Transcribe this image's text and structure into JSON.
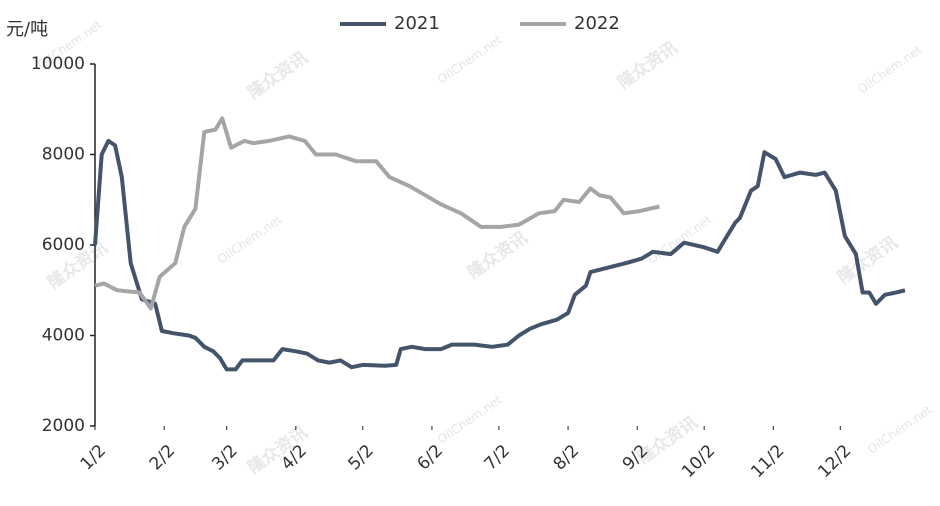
{
  "chart_data": {
    "type": "line",
    "y_label": "元/吨",
    "watermark": [
      "隆众资讯",
      "OilChem.net"
    ],
    "xlim": [
      0,
      363
    ],
    "xticks": [
      {
        "value": 0,
        "label": "1/2"
      },
      {
        "value": 31,
        "label": "2/2"
      },
      {
        "value": 59,
        "label": "3/2"
      },
      {
        "value": 90,
        "label": "4/2"
      },
      {
        "value": 120,
        "label": "5/2"
      },
      {
        "value": 151,
        "label": "6/2"
      },
      {
        "value": 181,
        "label": "7/2"
      },
      {
        "value": 212,
        "label": "8/2"
      },
      {
        "value": 243,
        "label": "9/2"
      },
      {
        "value": 273,
        "label": "10/2"
      },
      {
        "value": 304,
        "label": "11/2"
      },
      {
        "value": 334,
        "label": "12/2"
      }
    ],
    "ylim": [
      2000,
      10000
    ],
    "yticks": [
      2000,
      4000,
      6000,
      8000,
      10000
    ],
    "grid": false,
    "legend": "top",
    "series": [
      {
        "name": "2021",
        "color": "#44546a",
        "x": [
          0,
          3,
          6,
          9,
          12,
          16,
          21,
          27,
          30,
          35,
          42,
          45,
          49,
          53,
          56,
          59,
          63,
          66,
          73,
          80,
          84,
          90,
          95,
          100,
          105,
          110,
          115,
          120,
          130,
          135,
          137,
          142,
          148,
          155,
          160,
          170,
          178,
          185,
          190,
          195,
          200,
          207,
          212,
          215,
          220,
          222,
          230,
          238,
          245,
          250,
          258,
          264,
          273,
          279,
          282,
          287,
          289,
          294,
          297,
          300,
          305,
          309,
          316,
          323,
          327,
          332,
          336,
          341,
          344,
          347,
          350,
          354,
          359,
          363
        ],
        "values": [
          6000,
          8000,
          8300,
          8200,
          7500,
          5600,
          4800,
          4700,
          4100,
          4050,
          4000,
          3950,
          3750,
          3650,
          3500,
          3250,
          3250,
          3450,
          3450,
          3450,
          3700,
          3650,
          3600,
          3450,
          3400,
          3450,
          3300,
          3350,
          3330,
          3350,
          3700,
          3750,
          3700,
          3700,
          3800,
          3800,
          3750,
          3800,
          4000,
          4150,
          4250,
          4350,
          4500,
          4900,
          5100,
          5400,
          5500,
          5600,
          5700,
          5850,
          5800,
          6050,
          5950,
          5850,
          6100,
          6500,
          6600,
          7200,
          7300,
          8050,
          7900,
          7500,
          7600,
          7550,
          7600,
          7200,
          6200,
          5800,
          4950,
          4950,
          4700,
          4900,
          4950,
          5000
        ]
      },
      {
        "name": "2022",
        "color": "#a5a5a5",
        "x": [
          0,
          4,
          10,
          20,
          25,
          29,
          36,
          40,
          45,
          49,
          54,
          57,
          61,
          67,
          71,
          78,
          87,
          94,
          99,
          108,
          117,
          126,
          132,
          141,
          148,
          155,
          164,
          173,
          182,
          190,
          199,
          206,
          210,
          217,
          222,
          226,
          231,
          237,
          244,
          253
        ],
        "values": [
          5100,
          5150,
          5000,
          4950,
          4600,
          5300,
          5600,
          6400,
          6800,
          8500,
          8550,
          8800,
          8150,
          8300,
          8250,
          8300,
          8400,
          8300,
          8000,
          8000,
          7850,
          7850,
          7500,
          7300,
          7100,
          6900,
          6700,
          6400,
          6400,
          6450,
          6700,
          6750,
          7000,
          6950,
          7250,
          7100,
          7050,
          6700,
          6750,
          6850
        ]
      }
    ]
  }
}
